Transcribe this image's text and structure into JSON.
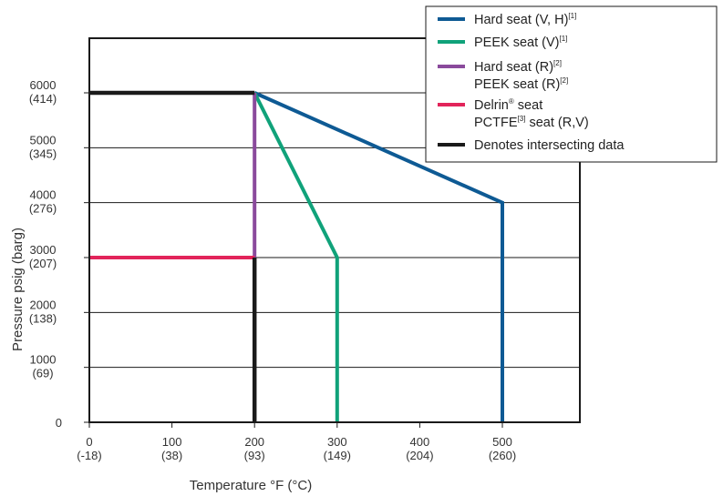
{
  "chart_data": {
    "type": "line",
    "xlabel": "Temperature °F (°C)",
    "ylabel": "Pressure psig (barg)",
    "xlim": [
      0,
      600
    ],
    "ylim": [
      0,
      7000
    ],
    "grid": true,
    "legend_position": "top-right",
    "x_ticks": [
      {
        "value": 0,
        "label": "0",
        "sublabel": "(-18)"
      },
      {
        "value": 100,
        "label": "100",
        "sublabel": "(38)"
      },
      {
        "value": 200,
        "label": "200",
        "sublabel": "(93)"
      },
      {
        "value": 300,
        "label": "300",
        "sublabel": "(149)"
      },
      {
        "value": 400,
        "label": "400",
        "sublabel": "(204)"
      },
      {
        "value": 500,
        "label": "500",
        "sublabel": "(260)"
      }
    ],
    "y_ticks": [
      {
        "value": 0,
        "label": "0",
        "sublabel": ""
      },
      {
        "value": 1000,
        "label": "1000",
        "sublabel": "(69)"
      },
      {
        "value": 2000,
        "label": "2000",
        "sublabel": "(138)"
      },
      {
        "value": 3000,
        "label": "3000",
        "sublabel": "(207)"
      },
      {
        "value": 4000,
        "label": "4000",
        "sublabel": "(276)"
      },
      {
        "value": 5000,
        "label": "5000",
        "sublabel": "(345)"
      },
      {
        "value": 6000,
        "label": "6000",
        "sublabel": "(414)"
      }
    ],
    "series": [
      {
        "key": "hard-seat-vh",
        "color": "#0e5a94",
        "points": [
          [
            200,
            6000
          ],
          [
            500,
            4000
          ],
          [
            500,
            0
          ]
        ]
      },
      {
        "key": "peek-seat-v",
        "color": "#10a27a",
        "points": [
          [
            200,
            6000
          ],
          [
            300,
            3000
          ],
          [
            300,
            0
          ]
        ]
      },
      {
        "key": "hard-peek-seat-r",
        "color": "#8a4a9c",
        "points": [
          [
            200,
            6000
          ],
          [
            200,
            3000
          ]
        ]
      },
      {
        "key": "delrin-pctfe-seat",
        "color": "#e2245a",
        "points": [
          [
            0,
            3000
          ],
          [
            200,
            3000
          ]
        ]
      },
      {
        "key": "intersecting",
        "color": "#1a1a1a",
        "segments": [
          [
            [
              0,
              6000
            ],
            [
              200,
              6000
            ]
          ],
          [
            [
              200,
              3000
            ],
            [
              200,
              0
            ]
          ]
        ]
      }
    ],
    "legend": [
      {
        "key": "hard-seat-vh",
        "color": "#0e5a94",
        "lines": [
          {
            "text": "Hard seat (V, H)",
            "sup": "[1]"
          }
        ]
      },
      {
        "key": "peek-seat-v",
        "color": "#10a27a",
        "lines": [
          {
            "text": "PEEK seat (V)",
            "sup": "[1]"
          }
        ]
      },
      {
        "key": "hard-peek-seat-r",
        "color": "#8a4a9c",
        "lines": [
          {
            "text": "Hard seat (R)",
            "sup": "[2]"
          },
          {
            "text": "PEEK seat (R)",
            "sup": "[2]"
          }
        ]
      },
      {
        "key": "delrin-pctfe-seat",
        "color": "#e2245a",
        "lines": [
          {
            "text": "Delrin",
            "sup": "®",
            "after": " seat"
          },
          {
            "text": "PCTFE",
            "sup": "[3]",
            "after": " seat (R,V)"
          }
        ]
      },
      {
        "key": "intersecting",
        "color": "#1a1a1a",
        "lines": [
          {
            "text": "Denotes intersecting data",
            "sup": ""
          }
        ]
      }
    ]
  }
}
